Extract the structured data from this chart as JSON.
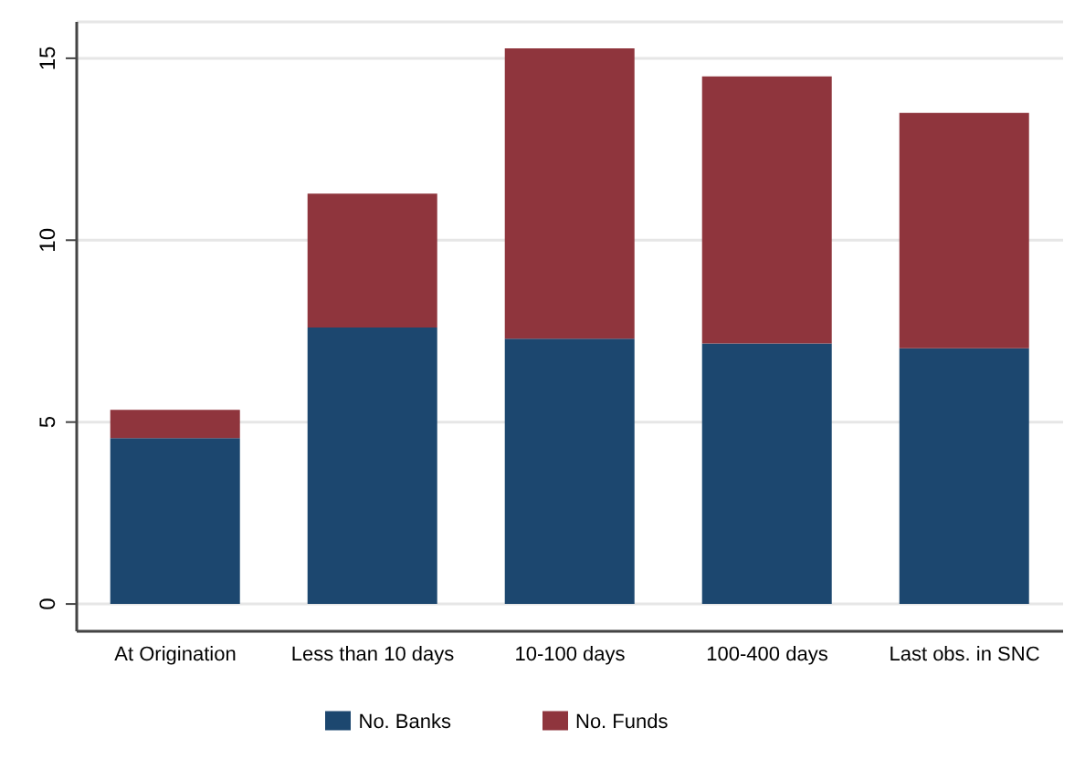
{
  "chart_data": {
    "type": "bar",
    "stacked": true,
    "categories": [
      "At Origination",
      "Less than 10 days",
      "10-100 days",
      "100-400 days",
      "Last obs. in SNC"
    ],
    "series": [
      {
        "name": "No. Banks",
        "color": "#1c476f",
        "values": [
          4.56,
          7.6,
          7.29,
          7.16,
          7.03
        ]
      },
      {
        "name": "No. Funds",
        "color": "#8f353d",
        "values": [
          0.78,
          3.68,
          7.98,
          7.34,
          6.47
        ]
      }
    ],
    "ylim": [
      -0.75,
      16
    ],
    "yticks": [
      0,
      5,
      10,
      15
    ],
    "grid": "y",
    "legend": "bottom"
  }
}
